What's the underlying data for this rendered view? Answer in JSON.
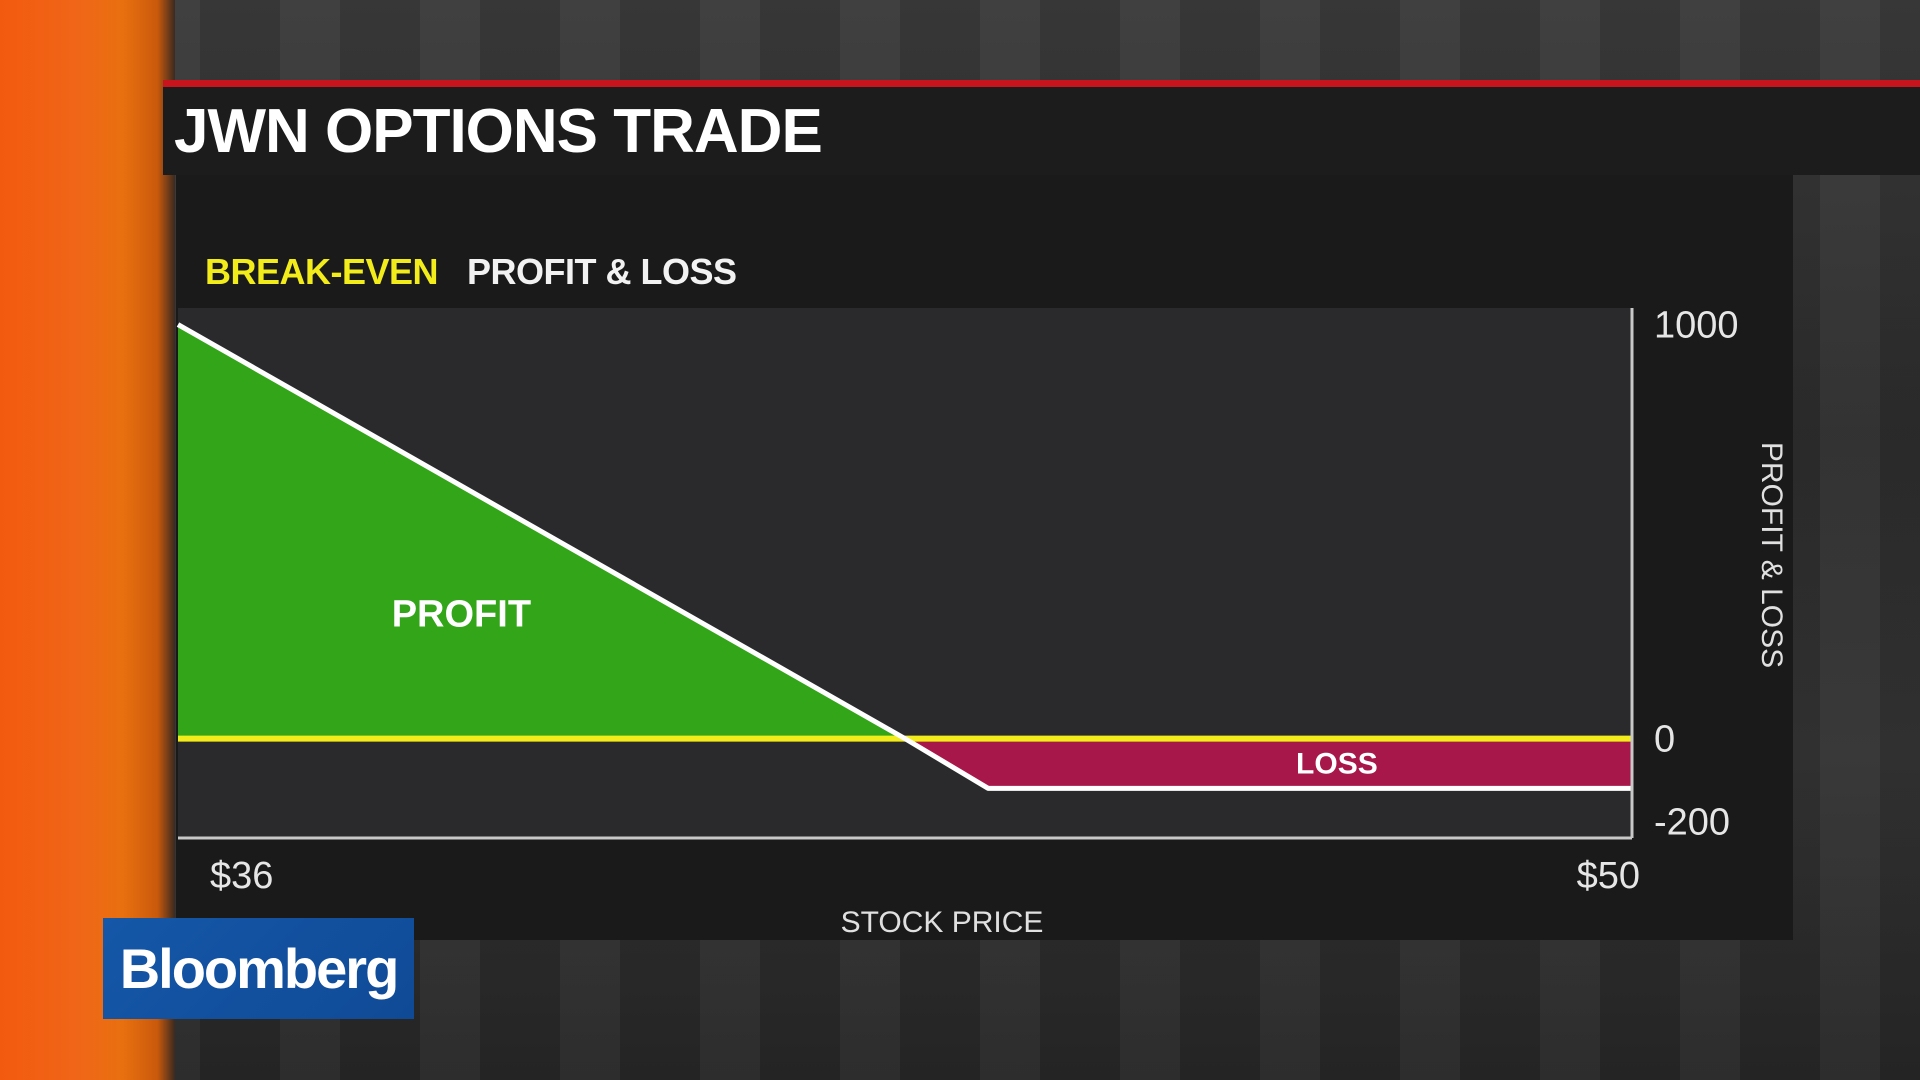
{
  "header": {
    "title": "JWN OPTIONS TRADE"
  },
  "legend": {
    "break_even": "BREAK-EVEN",
    "profit_loss": "PROFIT & LOSS"
  },
  "colors": {
    "break_even": "#f2ec1b",
    "profit": "#33a518",
    "loss": "#a8174a",
    "payoff_line": "#ffffff",
    "accent_orange": "#f25a0f",
    "accent_red": "#c8141c",
    "logo_bg": "#1557a8"
  },
  "logo": {
    "text": "Bloomberg"
  },
  "chart_data": {
    "type": "area",
    "title": "",
    "xlabel": "STOCK PRICE",
    "ylabel": "PROFIT & LOSS",
    "xlim": [
      36,
      50
    ],
    "ylim": [
      -240,
      1040
    ],
    "x_tick_labels": [
      "$36",
      "$50"
    ],
    "y_ticks": [
      1000,
      0,
      -200
    ],
    "y_tick_labels": [
      "1000",
      "0",
      "-200"
    ],
    "series": [
      {
        "x": [
          36,
          43,
          43.8,
          50
        ],
        "y": [
          1000,
          0,
          -120,
          -120
        ]
      }
    ],
    "break_even_y": 0,
    "annotations": [
      {
        "text": "PROFIT",
        "x": 38,
        "y": 300
      },
      {
        "text": "LOSS",
        "x": 46.6,
        "y": -60
      }
    ],
    "grid": false,
    "legend": "top-left"
  }
}
